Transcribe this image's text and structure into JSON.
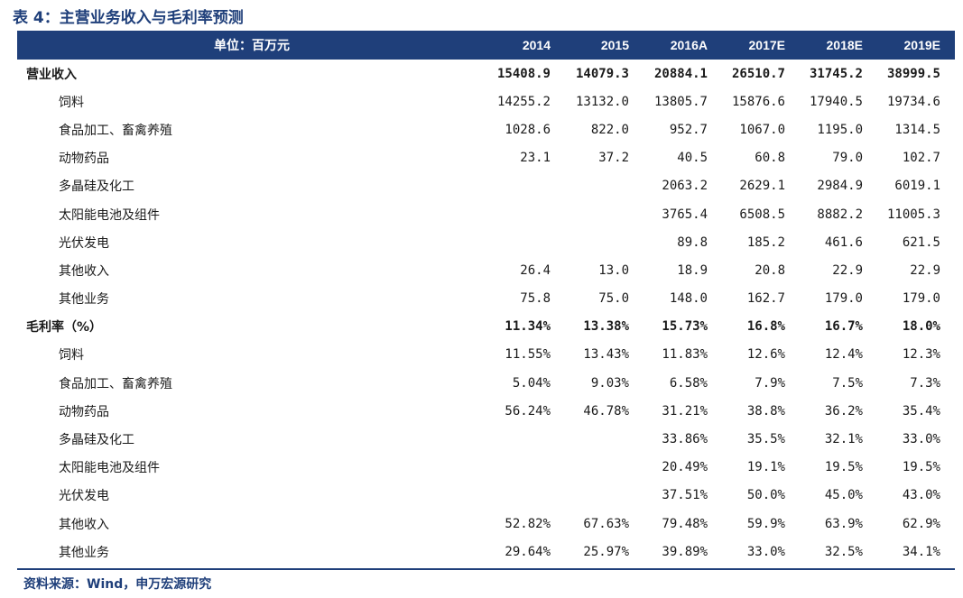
{
  "title": "表 4：主营业务收入与毛利率预测",
  "header": {
    "unit": "单位：百万元",
    "years": [
      "2014",
      "2015",
      "2016A",
      "2017E",
      "2018E",
      "2019E"
    ]
  },
  "rows": [
    {
      "label": "营业收入",
      "section": true,
      "values": [
        "15408.9",
        "14079.3",
        "20884.1",
        "26510.7",
        "31745.2",
        "38999.5"
      ]
    },
    {
      "label": "饲料",
      "values": [
        "14255.2",
        "13132.0",
        "13805.7",
        "15876.6",
        "17940.5",
        "19734.6"
      ]
    },
    {
      "label": "食品加工、畜禽养殖",
      "values": [
        "1028.6",
        "822.0",
        "952.7",
        "1067.0",
        "1195.0",
        "1314.5"
      ]
    },
    {
      "label": "动物药品",
      "values": [
        "23.1",
        "37.2",
        "40.5",
        "60.8",
        "79.0",
        "102.7"
      ]
    },
    {
      "label": "多晶硅及化工",
      "values": [
        "",
        "",
        "2063.2",
        "2629.1",
        "2984.9",
        "6019.1"
      ]
    },
    {
      "label": "太阳能电池及组件",
      "values": [
        "",
        "",
        "3765.4",
        "6508.5",
        "8882.2",
        "11005.3"
      ]
    },
    {
      "label": "光伏发电",
      "values": [
        "",
        "",
        "89.8",
        "185.2",
        "461.6",
        "621.5"
      ]
    },
    {
      "label": "其他收入",
      "values": [
        "26.4",
        "13.0",
        "18.9",
        "20.8",
        "22.9",
        "22.9"
      ]
    },
    {
      "label": "其他业务",
      "values": [
        "75.8",
        "75.0",
        "148.0",
        "162.7",
        "179.0",
        "179.0"
      ]
    },
    {
      "label": "毛利率（%）",
      "section": true,
      "values": [
        "11.34%",
        "13.38%",
        "15.73%",
        "16.8%",
        "16.7%",
        "18.0%"
      ]
    },
    {
      "label": "饲料",
      "values": [
        "11.55%",
        "13.43%",
        "11.83%",
        "12.6%",
        "12.4%",
        "12.3%"
      ]
    },
    {
      "label": "食品加工、畜禽养殖",
      "values": [
        "5.04%",
        "9.03%",
        "6.58%",
        "7.9%",
        "7.5%",
        "7.3%"
      ]
    },
    {
      "label": "动物药品",
      "values": [
        "56.24%",
        "46.78%",
        "31.21%",
        "38.8%",
        "36.2%",
        "35.4%"
      ]
    },
    {
      "label": "多晶硅及化工",
      "values": [
        "",
        "",
        "33.86%",
        "35.5%",
        "32.1%",
        "33.0%"
      ]
    },
    {
      "label": "太阳能电池及组件",
      "values": [
        "",
        "",
        "20.49%",
        "19.1%",
        "19.5%",
        "19.5%"
      ]
    },
    {
      "label": "光伏发电",
      "values": [
        "",
        "",
        "37.51%",
        "50.0%",
        "45.0%",
        "43.0%"
      ]
    },
    {
      "label": "其他收入",
      "values": [
        "52.82%",
        "67.63%",
        "79.48%",
        "59.9%",
        "63.9%",
        "62.9%"
      ]
    },
    {
      "label": "其他业务",
      "values": [
        "29.64%",
        "25.97%",
        "39.89%",
        "33.0%",
        "32.5%",
        "34.1%"
      ]
    }
  ],
  "source": "资料来源：Wind，申万宏源研究",
  "colors": {
    "accent": "#1f3f7a"
  }
}
